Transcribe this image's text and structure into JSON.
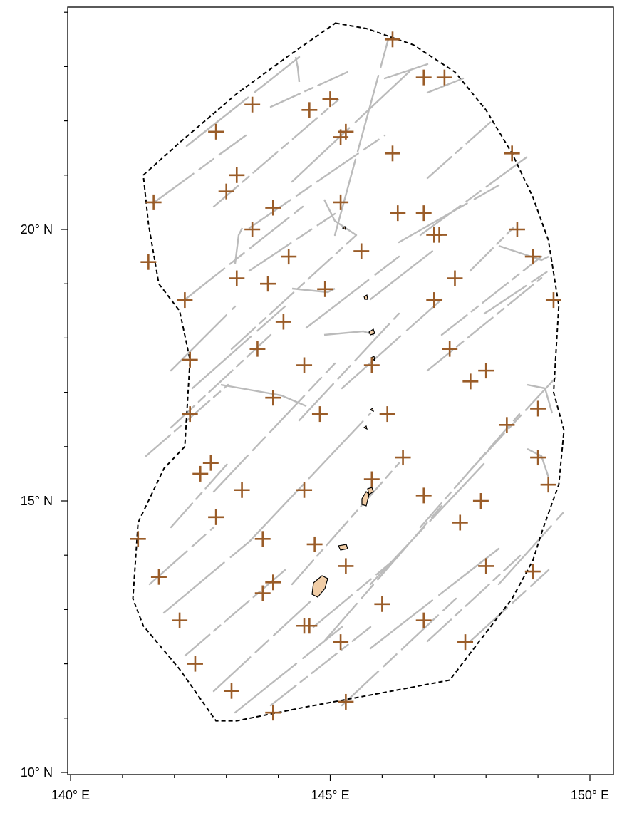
{
  "map": {
    "axes": {
      "x_labels": [
        {
          "lon": 140,
          "label": "140° E"
        },
        {
          "lon": 145,
          "label": "145° E"
        },
        {
          "lon": 150,
          "label": "150° E"
        }
      ],
      "y_labels": [
        {
          "lat": 10,
          "label": "10° N"
        },
        {
          "lat": 15,
          "label": "15° N"
        },
        {
          "lat": 20,
          "label": "20° N"
        }
      ],
      "xlim": [
        140,
        150
      ],
      "ylim": [
        10,
        24
      ]
    },
    "colors": {
      "boundary": "#000000",
      "tracks": "#bbbbbb",
      "markers": "#9a5c28",
      "island_fill": "#f1cda6",
      "island_stroke": "#000000"
    },
    "boundary": [
      [
        145.1,
        23.8
      ],
      [
        145.7,
        23.7
      ],
      [
        146.6,
        23.4
      ],
      [
        147.4,
        22.9
      ],
      [
        148.0,
        22.2
      ],
      [
        148.5,
        21.4
      ],
      [
        148.9,
        20.6
      ],
      [
        149.2,
        19.8
      ],
      [
        149.4,
        18.6
      ],
      [
        149.3,
        17.0
      ],
      [
        149.5,
        16.3
      ],
      [
        149.4,
        15.3
      ],
      [
        149.1,
        14.5
      ],
      [
        148.9,
        13.9
      ],
      [
        148.5,
        13.2
      ],
      [
        147.7,
        12.2
      ],
      [
        147.3,
        11.7
      ],
      [
        146.2,
        11.5
      ],
      [
        144.5,
        11.2
      ],
      [
        143.2,
        10.95
      ],
      [
        142.8,
        10.95
      ],
      [
        142.1,
        11.9
      ],
      [
        141.4,
        12.7
      ],
      [
        141.2,
        13.2
      ],
      [
        141.3,
        14.6
      ],
      [
        141.8,
        15.6
      ],
      [
        142.2,
        16.0
      ],
      [
        142.3,
        17.6
      ],
      [
        142.1,
        18.5
      ],
      [
        141.7,
        19.0
      ],
      [
        141.5,
        20.1
      ],
      [
        141.4,
        21.0
      ],
      [
        142.1,
        21.6
      ],
      [
        143.2,
        22.5
      ],
      [
        144.2,
        23.2
      ],
      [
        145.1,
        23.8
      ]
    ],
    "markers": [
      [
        146.2,
        23.5
      ],
      [
        146.8,
        22.8
      ],
      [
        147.2,
        22.8
      ],
      [
        143.5,
        22.3
      ],
      [
        145.0,
        22.4
      ],
      [
        144.6,
        22.2
      ],
      [
        145.2,
        21.7
      ],
      [
        145.3,
        21.8
      ],
      [
        142.8,
        21.8
      ],
      [
        146.2,
        21.4
      ],
      [
        148.5,
        21.4
      ],
      [
        143.2,
        21.0
      ],
      [
        143.0,
        20.7
      ],
      [
        141.6,
        20.5
      ],
      [
        145.2,
        20.5
      ],
      [
        143.9,
        20.4
      ],
      [
        146.3,
        20.3
      ],
      [
        146.8,
        20.3
      ],
      [
        147.0,
        19.9
      ],
      [
        147.1,
        19.9
      ],
      [
        148.6,
        20.0
      ],
      [
        143.5,
        20.0
      ],
      [
        144.2,
        19.5
      ],
      [
        145.6,
        19.6
      ],
      [
        148.9,
        19.5
      ],
      [
        141.5,
        19.4
      ],
      [
        143.2,
        19.1
      ],
      [
        143.8,
        19.0
      ],
      [
        144.9,
        18.9
      ],
      [
        147.0,
        18.7
      ],
      [
        147.4,
        19.1
      ],
      [
        142.2,
        18.7
      ],
      [
        149.3,
        18.7
      ],
      [
        144.1,
        18.3
      ],
      [
        143.6,
        17.8
      ],
      [
        147.3,
        17.8
      ],
      [
        142.3,
        17.6
      ],
      [
        144.5,
        17.5
      ],
      [
        145.8,
        17.5
      ],
      [
        148.0,
        17.4
      ],
      [
        147.7,
        17.2
      ],
      [
        143.9,
        16.9
      ],
      [
        142.3,
        16.6
      ],
      [
        144.8,
        16.6
      ],
      [
        146.1,
        16.6
      ],
      [
        149.0,
        16.7
      ],
      [
        148.4,
        16.4
      ],
      [
        146.4,
        15.8
      ],
      [
        149.0,
        15.8
      ],
      [
        142.7,
        15.7
      ],
      [
        142.5,
        15.5
      ],
      [
        145.8,
        15.4
      ],
      [
        149.2,
        15.3
      ],
      [
        143.3,
        15.2
      ],
      [
        144.5,
        15.2
      ],
      [
        146.8,
        15.1
      ],
      [
        147.9,
        15.0
      ],
      [
        142.8,
        14.7
      ],
      [
        147.5,
        14.6
      ],
      [
        141.3,
        14.3
      ],
      [
        143.7,
        14.3
      ],
      [
        144.7,
        14.2
      ],
      [
        145.3,
        13.8
      ],
      [
        148.0,
        13.8
      ],
      [
        148.9,
        13.7
      ],
      [
        141.7,
        13.6
      ],
      [
        143.9,
        13.5
      ],
      [
        143.7,
        13.3
      ],
      [
        146.0,
        13.1
      ],
      [
        142.1,
        12.8
      ],
      [
        144.5,
        12.7
      ],
      [
        144.6,
        12.7
      ],
      [
        146.8,
        12.8
      ],
      [
        145.2,
        12.4
      ],
      [
        147.6,
        12.4
      ],
      [
        142.4,
        12.0
      ],
      [
        143.1,
        11.5
      ],
      [
        145.3,
        11.3
      ],
      [
        143.9,
        11.1
      ]
    ]
  }
}
